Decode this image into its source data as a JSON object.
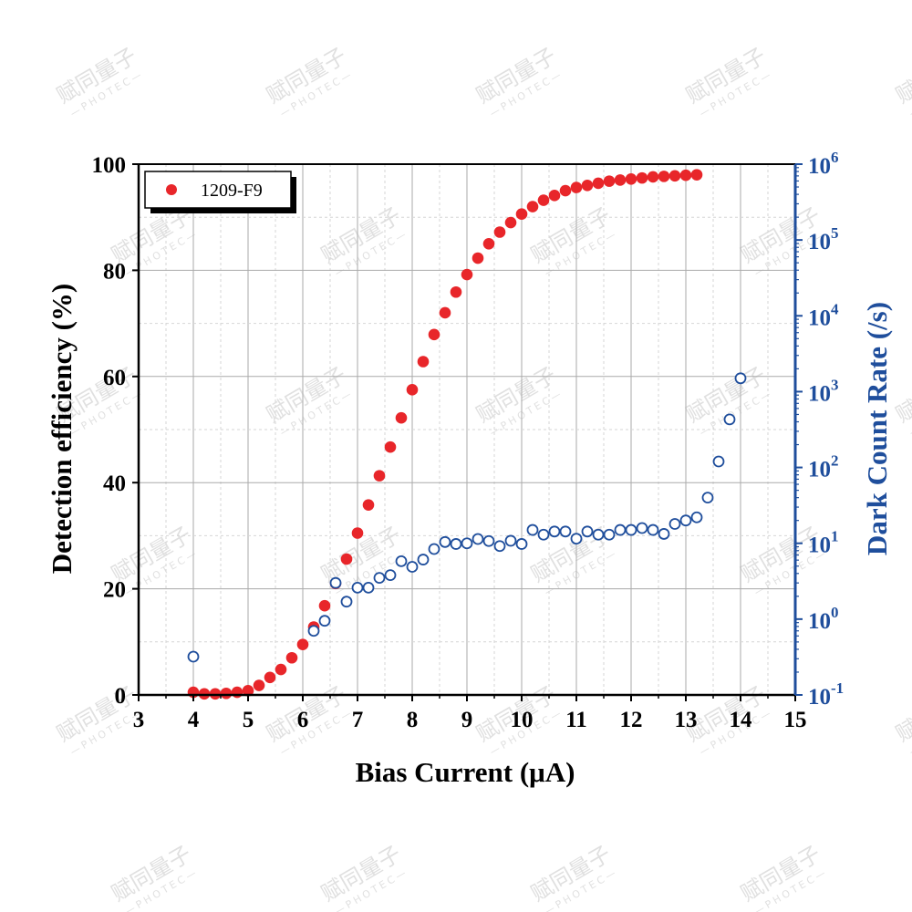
{
  "watermark": {
    "main": "赋同量子",
    "sub": "—PHOTEC—"
  },
  "chart_data": {
    "type": "scatter",
    "xlabel": "Bias Current (μA)",
    "ylabel": "Detection efficiency (%)",
    "y2label": "Dark Count Rate (/s)",
    "xlim": [
      3,
      15
    ],
    "ylim": [
      0,
      100
    ],
    "y2lim": [
      0.1,
      1000000
    ],
    "y2scale": "log",
    "grid": true,
    "legend_position": "top-left",
    "x_ticks": [
      "3",
      "4",
      "5",
      "6",
      "7",
      "8",
      "9",
      "10",
      "11",
      "12",
      "13",
      "14",
      "15"
    ],
    "y_ticks": [
      "0",
      "20",
      "40",
      "60",
      "80",
      "100"
    ],
    "y2_ticks": [
      {
        "base": "10",
        "exp": "-1"
      },
      {
        "base": "10",
        "exp": "0"
      },
      {
        "base": "10",
        "exp": "1"
      },
      {
        "base": "10",
        "exp": "2"
      },
      {
        "base": "10",
        "exp": "3"
      },
      {
        "base": "10",
        "exp": "4"
      },
      {
        "base": "10",
        "exp": "5"
      },
      {
        "base": "10",
        "exp": "6"
      }
    ],
    "colors": {
      "efficiency": "#e8262a",
      "dark_count": "#1f4e9c",
      "axis_right": "#1f4e9c"
    },
    "series": [
      {
        "name": "1209-F9",
        "axis": "left",
        "marker": "filled-circle",
        "x": [
          4.0,
          4.2,
          4.4,
          4.6,
          4.8,
          5.0,
          5.2,
          5.4,
          5.6,
          5.8,
          6.0,
          6.2,
          6.4,
          6.6,
          6.8,
          7.0,
          7.2,
          7.4,
          7.6,
          7.8,
          8.0,
          8.2,
          8.4,
          8.6,
          8.8,
          9.0,
          9.2,
          9.4,
          9.6,
          9.8,
          10.0,
          10.2,
          10.4,
          10.6,
          10.8,
          11.0,
          11.2,
          11.4,
          11.6,
          11.8,
          12.0,
          12.2,
          12.4,
          12.6,
          12.8,
          13.0,
          13.2
        ],
        "y": [
          0.5,
          0.2,
          0.2,
          0.3,
          0.5,
          0.8,
          1.8,
          3.3,
          4.8,
          7.0,
          9.5,
          12.8,
          16.8,
          21.0,
          25.6,
          30.5,
          35.8,
          41.3,
          46.7,
          52.2,
          57.5,
          62.8,
          67.9,
          72.0,
          75.9,
          79.2,
          82.3,
          85.0,
          87.2,
          89.0,
          90.6,
          92.0,
          93.2,
          94.1,
          95.0,
          95.6,
          96.0,
          96.4,
          96.8,
          97.0,
          97.2,
          97.4,
          97.6,
          97.7,
          97.8,
          97.9,
          98.0
        ]
      },
      {
        "name": "",
        "axis": "right",
        "marker": "open-circle",
        "x": [
          4.0,
          6.2,
          6.4,
          6.6,
          6.8,
          7.0,
          7.2,
          7.4,
          7.6,
          7.8,
          8.0,
          8.2,
          8.4,
          8.6,
          8.8,
          9.0,
          9.2,
          9.4,
          9.6,
          9.8,
          10.0,
          10.2,
          10.4,
          10.6,
          10.8,
          11.0,
          11.2,
          11.4,
          11.6,
          11.8,
          12.0,
          12.2,
          12.4,
          12.6,
          12.8,
          13.0,
          13.2,
          13.4,
          13.6,
          13.8,
          14.0
        ],
        "y": [
          0.32,
          0.7,
          0.95,
          3.0,
          1.7,
          2.6,
          2.6,
          3.5,
          3.8,
          5.8,
          4.9,
          6.1,
          8.4,
          10.4,
          9.8,
          10.0,
          11.4,
          10.7,
          9.2,
          10.8,
          9.8,
          15.0,
          13.0,
          14.3,
          14.3,
          11.5,
          14.3,
          13.0,
          13.0,
          15.0,
          15.0,
          15.9,
          15.0,
          13.3,
          18.0,
          20.0,
          22.0,
          40.0,
          120.0,
          430.0,
          1500.0
        ]
      }
    ]
  }
}
